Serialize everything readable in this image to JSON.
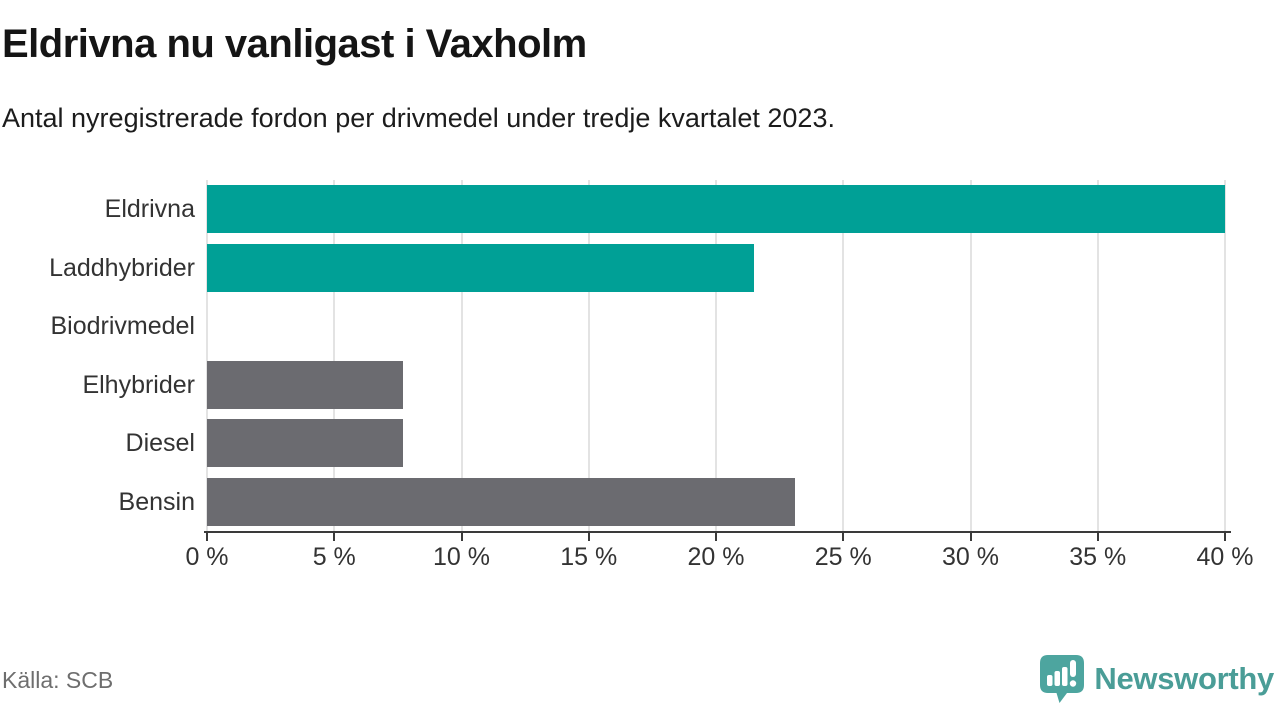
{
  "header": {
    "title": "Eldrivna nu vanligast i Vaxholm",
    "subtitle": "Antal nyregistrerade fordon per drivmedel under tredje kvartalet 2023."
  },
  "chart_data": {
    "type": "bar",
    "orientation": "horizontal",
    "title": "Eldrivna nu vanligast i Vaxholm",
    "subtitle": "Antal nyregistrerade fordon per drivmedel under tredje kvartalet 2023.",
    "categories": [
      "Eldrivna",
      "Laddhybrider",
      "Biodrivmedel",
      "Elhybrider",
      "Diesel",
      "Bensin"
    ],
    "values": [
      40,
      21.5,
      0,
      7.7,
      7.7,
      23.1
    ],
    "unit": "%",
    "bar_colors": [
      "#00a096",
      "#00a096",
      "#00a096",
      "#6b6b70",
      "#6b6b70",
      "#6b6b70"
    ],
    "xlim": [
      0,
      40
    ],
    "x_ticks": [
      0,
      5,
      10,
      15,
      20,
      25,
      30,
      35,
      40
    ],
    "x_tick_suffix": " %",
    "grid": "vertical",
    "legend": "none"
  },
  "footer": {
    "source": "Källa: SCB",
    "brand": "Newsworthy"
  },
  "colors": {
    "accent_teal": "#00a096",
    "neutral_gray": "#6b6b70",
    "gridline": "#e3e3e3",
    "axis": "#3a3a3a",
    "logo_teal": "#4a9d97"
  }
}
